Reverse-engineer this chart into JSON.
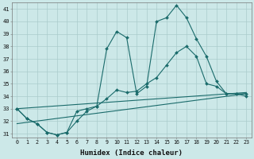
{
  "xlabel": "Humidex (Indice chaleur)",
  "bg_color": "#cce8e8",
  "grid_color": "#aacccc",
  "line_color": "#1a6b6b",
  "xlim": [
    -0.5,
    23.5
  ],
  "ylim": [
    30.7,
    41.5
  ],
  "yticks": [
    31,
    32,
    33,
    34,
    35,
    36,
    37,
    38,
    39,
    40,
    41
  ],
  "xticks": [
    0,
    1,
    2,
    3,
    4,
    5,
    6,
    7,
    8,
    9,
    10,
    11,
    12,
    13,
    14,
    15,
    16,
    17,
    18,
    19,
    20,
    21,
    22,
    23
  ],
  "line1_x": [
    0,
    1,
    2,
    3,
    4,
    5,
    6,
    7,
    8,
    9,
    10,
    11,
    12,
    13,
    14,
    15,
    16,
    17,
    18,
    19,
    20,
    21,
    22,
    23
  ],
  "line1_y": [
    33.0,
    32.2,
    31.8,
    31.1,
    30.9,
    31.1,
    32.8,
    33.0,
    33.2,
    37.8,
    39.2,
    38.7,
    34.2,
    34.8,
    40.0,
    40.3,
    41.3,
    40.3,
    38.6,
    37.2,
    35.2,
    34.2,
    34.2,
    34.2
  ],
  "line2_x": [
    0,
    1,
    2,
    3,
    4,
    5,
    6,
    7,
    8,
    9,
    10,
    11,
    12,
    13,
    14,
    15,
    16,
    17,
    18,
    19,
    20,
    21,
    22,
    23
  ],
  "line2_y": [
    33.0,
    32.2,
    31.8,
    31.1,
    30.9,
    31.1,
    32.0,
    32.8,
    33.2,
    33.8,
    34.5,
    34.3,
    34.4,
    35.0,
    35.5,
    36.5,
    37.5,
    38.0,
    37.2,
    35.0,
    34.8,
    34.2,
    34.2,
    34.0
  ],
  "line3_x": [
    0,
    23
  ],
  "line3_y": [
    33.0,
    34.3
  ],
  "line4_x": [
    0,
    23
  ],
  "line4_y": [
    31.8,
    34.2
  ]
}
